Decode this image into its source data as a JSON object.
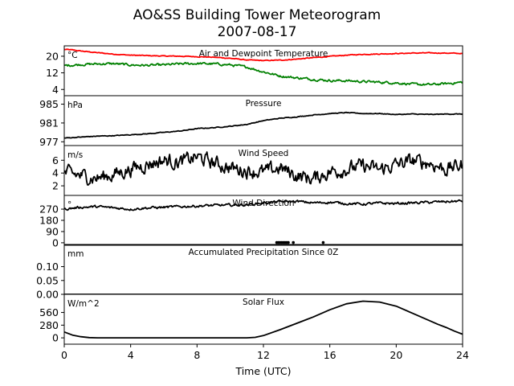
{
  "figure": {
    "title_line1": "AO&SS Building Tower Meteorogram",
    "title_line2": "2007-08-17",
    "xlabel": "Time (UTC)"
  },
  "chart_data": {
    "type": "line",
    "x_ticks": [
      0,
      4,
      8,
      12,
      16,
      20,
      24
    ],
    "xlim": [
      0,
      24
    ],
    "panels": [
      {
        "key": "temp",
        "title": "Air and Dewpoint Temperature",
        "unit": "°C",
        "ylim": [
          1,
          25
        ],
        "yticks": [
          4,
          12,
          20
        ],
        "series": [
          {
            "color": "#ff0000",
            "noise": 0.15,
            "x": [
              0,
              0.5,
              1,
              2,
              3,
              4,
              5,
              6,
              7,
              8,
              9,
              10,
              11,
              12,
              13,
              14,
              15,
              16,
              17,
              18,
              19,
              20,
              21,
              22,
              23,
              24
            ],
            "y": [
              23.3,
              23,
              22.5,
              21.7,
              21,
              20.5,
              20.3,
              20.1,
              20,
              19.8,
              19.5,
              19,
              18.2,
              17.9,
              18.1,
              18.6,
              19.3,
              19.9,
              20.5,
              20.9,
              21.1,
              21.3,
              21.5,
              21.6,
              21.5,
              21.3
            ]
          },
          {
            "color": "#008000",
            "noise": 0.45,
            "x": [
              0,
              1,
              2,
              3,
              4,
              5,
              6,
              7,
              8,
              9,
              10,
              11,
              12,
              13,
              14,
              15,
              16,
              17,
              18,
              19,
              20,
              21,
              22,
              23,
              24
            ],
            "y": [
              15.5,
              16,
              16.3,
              16.4,
              15.8,
              15.6,
              15.8,
              16.3,
              16.5,
              16.3,
              15.8,
              14.8,
              12.5,
              10.5,
              9.6,
              8.9,
              8.3,
              8.2,
              7.8,
              7.5,
              7.2,
              6.5,
              6.3,
              6.8,
              7.5
            ]
          }
        ]
      },
      {
        "key": "pressure",
        "title": "Pressure",
        "unit": "hPa",
        "ylim": [
          976.2,
          986.8
        ],
        "yticks": [
          977,
          981,
          985
        ],
        "series": [
          {
            "color": "#000000",
            "noise": 0.06,
            "x": [
              0,
              1,
              2,
              3,
              4,
              5,
              6,
              7,
              8,
              9,
              10,
              11,
              12,
              13,
              14,
              15,
              16,
              17,
              18,
              19,
              20,
              21,
              22,
              23,
              24
            ],
            "y": [
              977.8,
              978.0,
              978.2,
              978.3,
              978.5,
              978.7,
              979.0,
              979.3,
              979.8,
              980.0,
              980.3,
              980.7,
              981.5,
              982.0,
              982.3,
              982.7,
              983.0,
              983.2,
              983.0,
              983.0,
              982.8,
              982.9,
              982.8,
              982.9,
              982.9
            ]
          }
        ]
      },
      {
        "key": "wind_speed",
        "title": "Wind Speed",
        "unit": "m/s",
        "ylim": [
          0.5,
          8.3
        ],
        "yticks": [
          2,
          4,
          6
        ],
        "series": [
          {
            "color": "#000000",
            "noise": 0.9,
            "x": [
              0,
              1,
              2,
              3,
              4,
              5,
              6,
              7,
              8,
              9,
              10,
              11,
              12,
              13,
              14,
              15,
              16,
              17,
              18,
              19,
              20,
              21,
              22,
              23,
              24
            ],
            "y": [
              4,
              3.6,
              3.2,
              3.8,
              4.6,
              5.4,
              6,
              5.7,
              6.5,
              5.6,
              4.8,
              4.4,
              4.1,
              4.8,
              3.6,
              3.1,
              4.2,
              4.6,
              5.1,
              4.5,
              5.3,
              5.9,
              5.6,
              4.6,
              5.3
            ]
          }
        ]
      },
      {
        "key": "wind_dir",
        "title": "Wind Direction",
        "unit": "°",
        "ylim": [
          -20,
          380
        ],
        "yticks": [
          0,
          90,
          180,
          270
        ],
        "series": [
          {
            "color": "#000000",
            "noise": 8,
            "x": [
              0,
              1,
              2,
              3,
              4,
              5,
              6,
              7,
              8,
              9,
              10,
              11,
              12,
              13,
              14,
              15,
              16,
              17,
              18,
              19,
              20,
              21,
              22,
              23,
              24
            ],
            "y": [
              270,
              285,
              290,
              280,
              270,
              280,
              285,
              290,
              295,
              300,
              302,
              305,
              320,
              330,
              332,
              320,
              325,
              315,
              310,
              318,
              315,
              320,
              325,
              330,
              335
            ]
          }
        ],
        "scatter": {
          "x": [
            12.8,
            12.9,
            13.0,
            13.1,
            13.2,
            13.3,
            13.4,
            13.5,
            13.8,
            15.6
          ],
          "y": [
            2,
            2,
            2,
            2,
            2,
            2,
            2,
            2,
            2,
            2
          ]
        }
      },
      {
        "key": "precip",
        "title": "Accumulated Precipitation Since 0Z",
        "unit": "mm",
        "ylim": [
          0,
          0.18
        ],
        "yticks": [
          0.0,
          0.05,
          0.1
        ],
        "ytick_labels": [
          "0.00",
          "0.05",
          "0.10"
        ],
        "series": [
          {
            "color": "#000000",
            "noise": 0,
            "x": [
              0,
              24
            ],
            "y": [
              0,
              0
            ]
          }
        ]
      },
      {
        "key": "solar",
        "title": "Solar Flux",
        "unit": "W/m^2",
        "ylim": [
          -140,
          960
        ],
        "yticks": [
          0,
          280,
          560
        ],
        "series": [
          {
            "color": "#000000",
            "noise": 0,
            "x": [
              0,
              0.5,
              1,
              1.5,
              2,
              4,
              6,
              8,
              10,
              11,
              11.5,
              12,
              13,
              14,
              15,
              16,
              17,
              18,
              19,
              20,
              21,
              22,
              22.5,
              23,
              23.5,
              24
            ],
            "y": [
              130,
              60,
              25,
              5,
              0,
              0,
              0,
              0,
              0,
              0,
              10,
              50,
              180,
              320,
              460,
              620,
              750,
              810,
              790,
              700,
              540,
              380,
              300,
              230,
              150,
              80
            ]
          }
        ]
      }
    ]
  }
}
